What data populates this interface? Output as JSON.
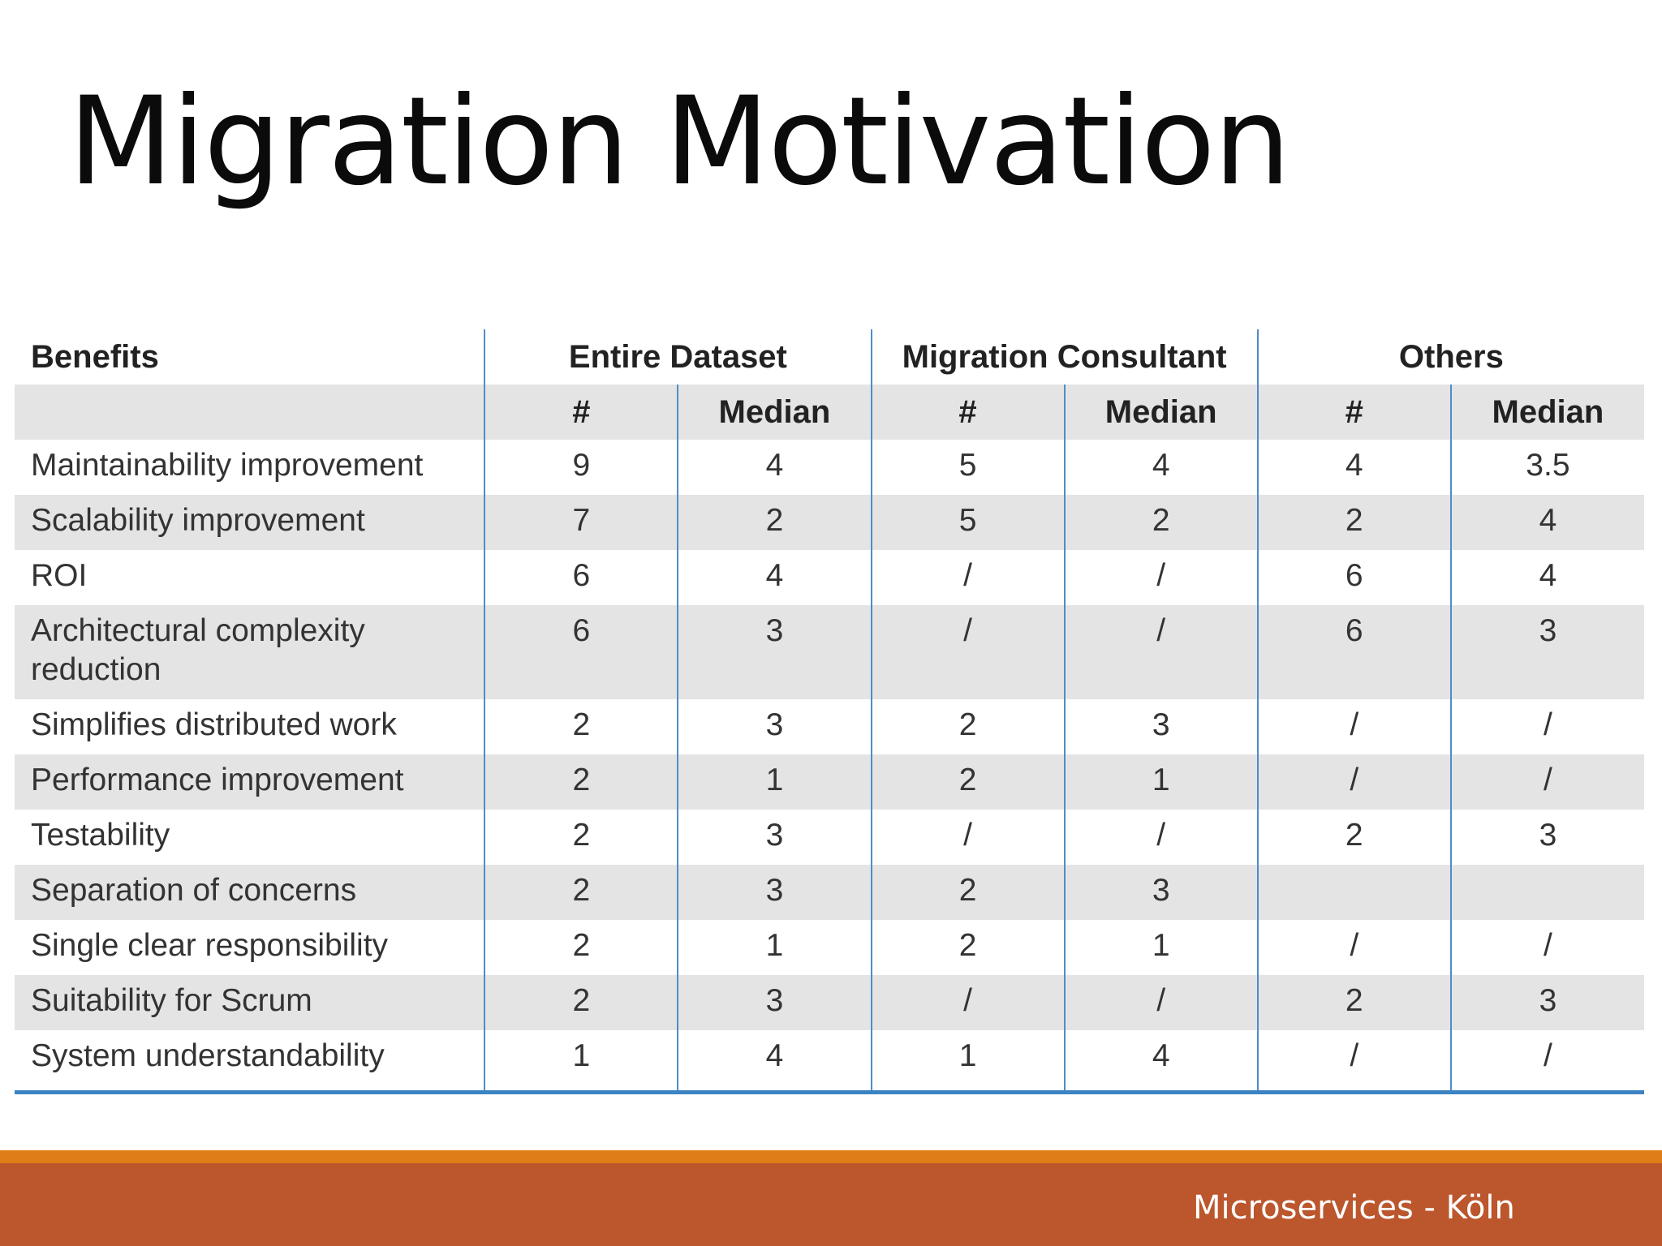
{
  "title": "Migration Motivation",
  "table": {
    "header_groups": {
      "benefits": "Benefits",
      "entire": "Entire Dataset",
      "consultant": "Migration Consultant",
      "others": "Others"
    },
    "subheaders": {
      "count": "#",
      "median": "Median"
    },
    "rows": [
      {
        "benefit": "Maintainability improvement",
        "values": [
          "9",
          "4",
          "5",
          "4",
          "4",
          "3.5"
        ]
      },
      {
        "benefit": "Scalability improvement",
        "values": [
          "7",
          "2",
          "5",
          "2",
          "2",
          "4"
        ]
      },
      {
        "benefit": "ROI",
        "values": [
          "6",
          "4",
          "/",
          "/",
          "6",
          "4"
        ]
      },
      {
        "benefit": "Architectural complexity reduction",
        "values": [
          "6",
          "3",
          "/",
          "/",
          "6",
          "3"
        ]
      },
      {
        "benefit": "Simplifies distributed work",
        "values": [
          "2",
          "3",
          "2",
          "3",
          "/",
          "/"
        ]
      },
      {
        "benefit": "Performance improvement",
        "values": [
          "2",
          "1",
          "2",
          "1",
          "/",
          "/"
        ]
      },
      {
        "benefit": "Testability",
        "values": [
          "2",
          "3",
          "/",
          "/",
          "2",
          "3"
        ]
      },
      {
        "benefit": "Separation of concerns",
        "values": [
          "2",
          "3",
          "2",
          "3",
          "",
          ""
        ]
      },
      {
        "benefit": "Single clear responsibility",
        "values": [
          "2",
          "1",
          "2",
          "1",
          "/",
          "/"
        ]
      },
      {
        "benefit": "Suitability for Scrum",
        "values": [
          "2",
          "3",
          "/",
          "/",
          "2",
          "3"
        ]
      },
      {
        "benefit": "System understandability",
        "values": [
          "1",
          "4",
          "1",
          "4",
          "/",
          "/"
        ]
      }
    ]
  },
  "footer": {
    "text": "Microservices - Köln"
  },
  "colors": {
    "footer_bar": "#bc562c",
    "footer_accent": "#df7d16",
    "table_rule": "#4f8dc6",
    "row_shade": "#e4e4e5"
  }
}
